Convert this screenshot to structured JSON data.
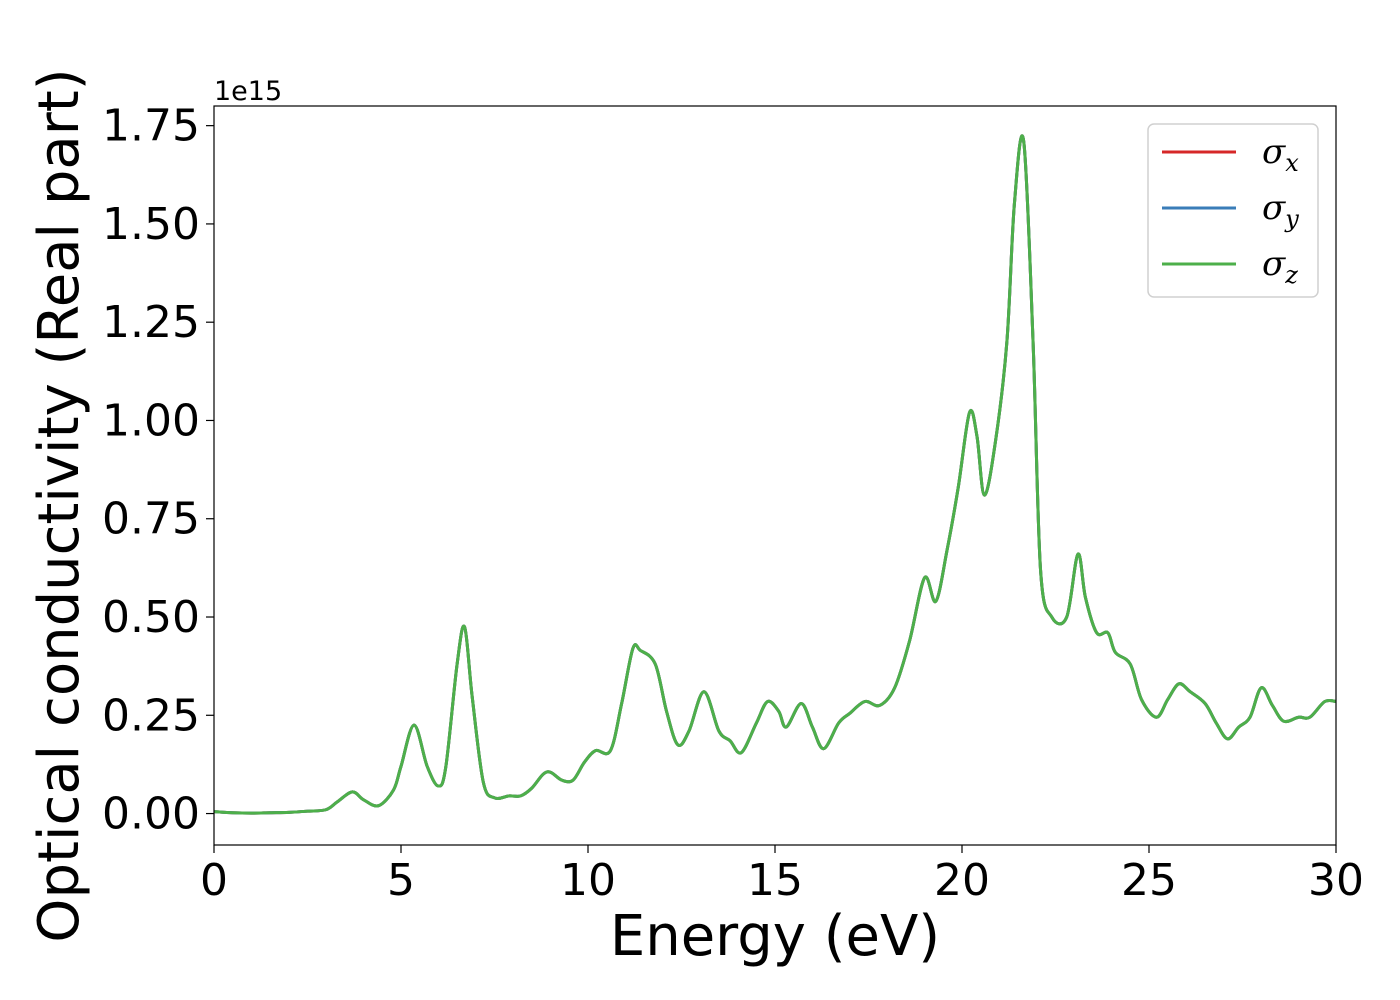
{
  "chart_data": {
    "type": "line",
    "xlabel": "Energy (eV)",
    "ylabel": "Optical conductivity (Real part)",
    "y_offset_label": "1e15",
    "xlim": [
      0,
      30
    ],
    "ylim": [
      -0.08,
      1.8
    ],
    "xticks": [
      0,
      5,
      10,
      15,
      20,
      25,
      30
    ],
    "xtick_labels": [
      "0",
      "5",
      "10",
      "15",
      "20",
      "25",
      "30"
    ],
    "yticks": [
      0.0,
      0.25,
      0.5,
      0.75,
      1.0,
      1.25,
      1.5,
      1.75
    ],
    "ytick_labels": [
      "0.00",
      "0.25",
      "0.50",
      "0.75",
      "1.00",
      "1.25",
      "1.50",
      "1.75"
    ],
    "grid": false,
    "legend_position": "top-right",
    "x": [
      0,
      0.5,
      1,
      1.5,
      2,
      2.5,
      3,
      3.3,
      3.7,
      4.0,
      4.4,
      4.8,
      5.0,
      5.35,
      5.7,
      6.0,
      6.2,
      6.5,
      6.7,
      6.9,
      7.2,
      7.5,
      7.9,
      8.2,
      8.5,
      8.8,
      9.0,
      9.3,
      9.6,
      9.9,
      10.2,
      10.6,
      10.9,
      11.2,
      11.4,
      11.8,
      12.1,
      12.4,
      12.7,
      13.1,
      13.5,
      13.8,
      14.1,
      14.5,
      14.8,
      15.1,
      15.3,
      15.7,
      16.0,
      16.3,
      16.7,
      17.0,
      17.4,
      17.8,
      18.2,
      18.6,
      19.0,
      19.3,
      19.6,
      19.9,
      20.2,
      20.4,
      20.6,
      20.9,
      21.2,
      21.4,
      21.65,
      21.9,
      22.1,
      22.4,
      22.8,
      23.1,
      23.3,
      23.6,
      23.9,
      24.1,
      24.5,
      24.8,
      25.2,
      25.5,
      25.8,
      26.1,
      26.5,
      26.8,
      27.1,
      27.4,
      27.7,
      28.0,
      28.3,
      28.6,
      29.0,
      29.3,
      29.7,
      30.0
    ],
    "series": [
      {
        "name": "σx",
        "color": "#d62728",
        "values": [
          0.005,
          0.002,
          0.001,
          0.002,
          0.003,
          0.006,
          0.01,
          0.03,
          0.055,
          0.035,
          0.02,
          0.06,
          0.12,
          0.225,
          0.12,
          0.07,
          0.12,
          0.38,
          0.475,
          0.3,
          0.08,
          0.04,
          0.045,
          0.045,
          0.065,
          0.1,
          0.105,
          0.085,
          0.085,
          0.13,
          0.16,
          0.16,
          0.28,
          0.42,
          0.415,
          0.38,
          0.26,
          0.175,
          0.21,
          0.31,
          0.21,
          0.185,
          0.155,
          0.23,
          0.285,
          0.26,
          0.22,
          0.28,
          0.22,
          0.165,
          0.23,
          0.255,
          0.285,
          0.275,
          0.32,
          0.44,
          0.6,
          0.54,
          0.67,
          0.83,
          1.02,
          0.96,
          0.81,
          0.95,
          1.2,
          1.55,
          1.71,
          1.2,
          0.62,
          0.5,
          0.5,
          0.66,
          0.55,
          0.46,
          0.46,
          0.41,
          0.38,
          0.29,
          0.245,
          0.29,
          0.33,
          0.31,
          0.28,
          0.23,
          0.19,
          0.22,
          0.245,
          0.32,
          0.275,
          0.235,
          0.245,
          0.245,
          0.285,
          0.285
        ]
      },
      {
        "name": "σy",
        "color": "#3a7db8",
        "values": [
          0.005,
          0.002,
          0.001,
          0.002,
          0.003,
          0.006,
          0.01,
          0.03,
          0.055,
          0.035,
          0.02,
          0.06,
          0.12,
          0.225,
          0.12,
          0.07,
          0.12,
          0.38,
          0.475,
          0.3,
          0.08,
          0.04,
          0.045,
          0.045,
          0.065,
          0.1,
          0.105,
          0.085,
          0.085,
          0.13,
          0.16,
          0.16,
          0.28,
          0.42,
          0.415,
          0.38,
          0.26,
          0.175,
          0.21,
          0.31,
          0.21,
          0.185,
          0.155,
          0.23,
          0.285,
          0.26,
          0.22,
          0.28,
          0.22,
          0.165,
          0.23,
          0.255,
          0.285,
          0.275,
          0.32,
          0.44,
          0.6,
          0.54,
          0.67,
          0.83,
          1.02,
          0.96,
          0.81,
          0.95,
          1.2,
          1.55,
          1.71,
          1.2,
          0.62,
          0.5,
          0.5,
          0.66,
          0.55,
          0.46,
          0.46,
          0.41,
          0.38,
          0.29,
          0.245,
          0.29,
          0.33,
          0.31,
          0.28,
          0.23,
          0.19,
          0.22,
          0.245,
          0.32,
          0.275,
          0.235,
          0.245,
          0.245,
          0.285,
          0.285
        ]
      },
      {
        "name": "σz",
        "color": "#4daf4a",
        "values": [
          0.005,
          0.002,
          0.001,
          0.002,
          0.003,
          0.006,
          0.01,
          0.03,
          0.055,
          0.035,
          0.02,
          0.06,
          0.12,
          0.225,
          0.12,
          0.07,
          0.12,
          0.38,
          0.475,
          0.3,
          0.08,
          0.04,
          0.045,
          0.045,
          0.065,
          0.1,
          0.105,
          0.085,
          0.085,
          0.13,
          0.16,
          0.16,
          0.28,
          0.42,
          0.415,
          0.38,
          0.26,
          0.175,
          0.21,
          0.31,
          0.21,
          0.185,
          0.155,
          0.23,
          0.285,
          0.26,
          0.22,
          0.28,
          0.22,
          0.165,
          0.23,
          0.255,
          0.285,
          0.275,
          0.32,
          0.44,
          0.6,
          0.54,
          0.67,
          0.83,
          1.02,
          0.96,
          0.81,
          0.95,
          1.2,
          1.55,
          1.71,
          1.2,
          0.62,
          0.5,
          0.5,
          0.66,
          0.55,
          0.46,
          0.46,
          0.41,
          0.38,
          0.29,
          0.245,
          0.29,
          0.33,
          0.31,
          0.28,
          0.23,
          0.19,
          0.22,
          0.245,
          0.32,
          0.275,
          0.235,
          0.245,
          0.245,
          0.285,
          0.285
        ]
      }
    ],
    "legend": [
      {
        "symbol": "σ",
        "sub": "x",
        "color": "#d62728"
      },
      {
        "symbol": "σ",
        "sub": "y",
        "color": "#3a7db8"
      },
      {
        "symbol": "σ",
        "sub": "z",
        "color": "#4daf4a"
      }
    ]
  }
}
